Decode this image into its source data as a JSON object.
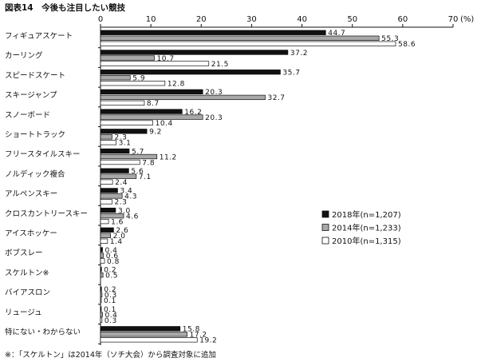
{
  "chart_data": {
    "type": "bar",
    "orientation": "horizontal",
    "title": "図表14　今後も注目したい競技",
    "unit": "(%)",
    "xlim": [
      0,
      70
    ],
    "xticks": [
      0,
      10,
      20,
      30,
      40,
      50,
      60,
      70
    ],
    "categories": [
      "フィギュアスケート",
      "カーリング",
      "スピードスケート",
      "スキージャンプ",
      "スノーボード",
      "ショートトラック",
      "フリースタイルスキー",
      "ノルディック複合",
      "アルペンスキー",
      "クロスカントリースキー",
      "アイスホッケー",
      "ボブスレー",
      "スケルトン※",
      "バイアスロン",
      "リュージュ",
      "特にない・わからない"
    ],
    "series": [
      {
        "name": "2018年(n=1,207)",
        "color": "#111111",
        "values": [
          44.7,
          37.2,
          35.7,
          20.3,
          16.2,
          9.2,
          5.7,
          5.6,
          3.4,
          3.0,
          2.6,
          0.4,
          0.2,
          0.2,
          0.1,
          15.8
        ],
        "labels": [
          "44.7",
          "37.2",
          "35.7",
          "20.3",
          "16.2",
          "9.2",
          "5.7",
          "5.6",
          "3.4",
          "3.0",
          "2.6",
          "0.4",
          "0.2",
          "0.2",
          "0.1",
          "15.8"
        ]
      },
      {
        "name": "2014年(n=1,233)",
        "color": "#a8a8a8",
        "values": [
          55.3,
          10.7,
          5.9,
          32.7,
          20.3,
          2.3,
          11.2,
          7.1,
          4.3,
          4.6,
          2.0,
          0.6,
          0.5,
          0.3,
          0.4,
          17.2
        ],
        "labels": [
          "55.3",
          "10.7",
          "5.9",
          "32.7",
          "20.3",
          "2.3",
          "11.2",
          "7.1",
          "4.3",
          "4.6",
          "2.0",
          "0.6",
          "0.5",
          "0.3",
          "0.4",
          "17.2"
        ]
      },
      {
        "name": "2010年(n=1,315)",
        "color": "#ffffff",
        "values": [
          58.6,
          21.5,
          12.8,
          8.7,
          10.4,
          3.1,
          7.8,
          2.4,
          2.3,
          1.6,
          1.4,
          0.8,
          null,
          0.1,
          0.3,
          19.2
        ],
        "labels": [
          "58.6",
          "21.5",
          "12.8",
          "8.7",
          "10.4",
          "3.1",
          "7.8",
          "2.4",
          "2.3",
          "1.6",
          "1.4",
          "0.8",
          null,
          "0.1",
          "0.3",
          "19.2"
        ]
      }
    ],
    "legend_position": "right-middle",
    "grid": false,
    "note": "※：「スケルトン」は2014年（ソチ大会）から調査対象に追加"
  }
}
